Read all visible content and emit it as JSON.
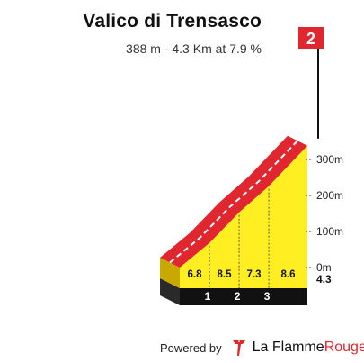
{
  "header": {
    "title": "Valico di Trensasco",
    "subtitle": "388 m - 4.3 Km at 7.9 %"
  },
  "flag": {
    "category": "2",
    "color": "#e0262f"
  },
  "footer": {
    "powered_by": "Powered by",
    "brand_part1": "La Flamme",
    "brand_part2": "Rouge",
    "logo_icon": "flame-rouge-icon"
  },
  "colors": {
    "climb_face": "#ffee22",
    "side_face": "#c9a800",
    "road_band": "#e0262f",
    "base": "#111111",
    "flag": "#e0262f"
  },
  "chart_data": {
    "type": "area",
    "title": "Valico di Trensasco",
    "subtitle": "388 m - 4.3 Km at 7.9 %",
    "x_unit": "km",
    "y_unit": "m",
    "segment_labels": [
      "1",
      "2",
      "3"
    ],
    "gradients": [
      6.8,
      8.5,
      7.3,
      8.6
    ],
    "gradient_labels": [
      "6.8",
      "8.5",
      "7.3",
      "8.6"
    ],
    "profile_km": [
      0,
      1,
      2,
      3,
      4.3
    ],
    "profile_elevation_rel_m": [
      0,
      68,
      153,
      226,
      338
    ],
    "y_ticks": [
      0,
      100,
      200,
      300
    ],
    "y_tick_labels": [
      "0m",
      "100m",
      "200m",
      "300m"
    ],
    "total_distance_label": "4.3",
    "total_distance_km": 4.3,
    "summit_elevation_m": 388,
    "avg_gradient_pct": 7.9,
    "grid": true
  }
}
